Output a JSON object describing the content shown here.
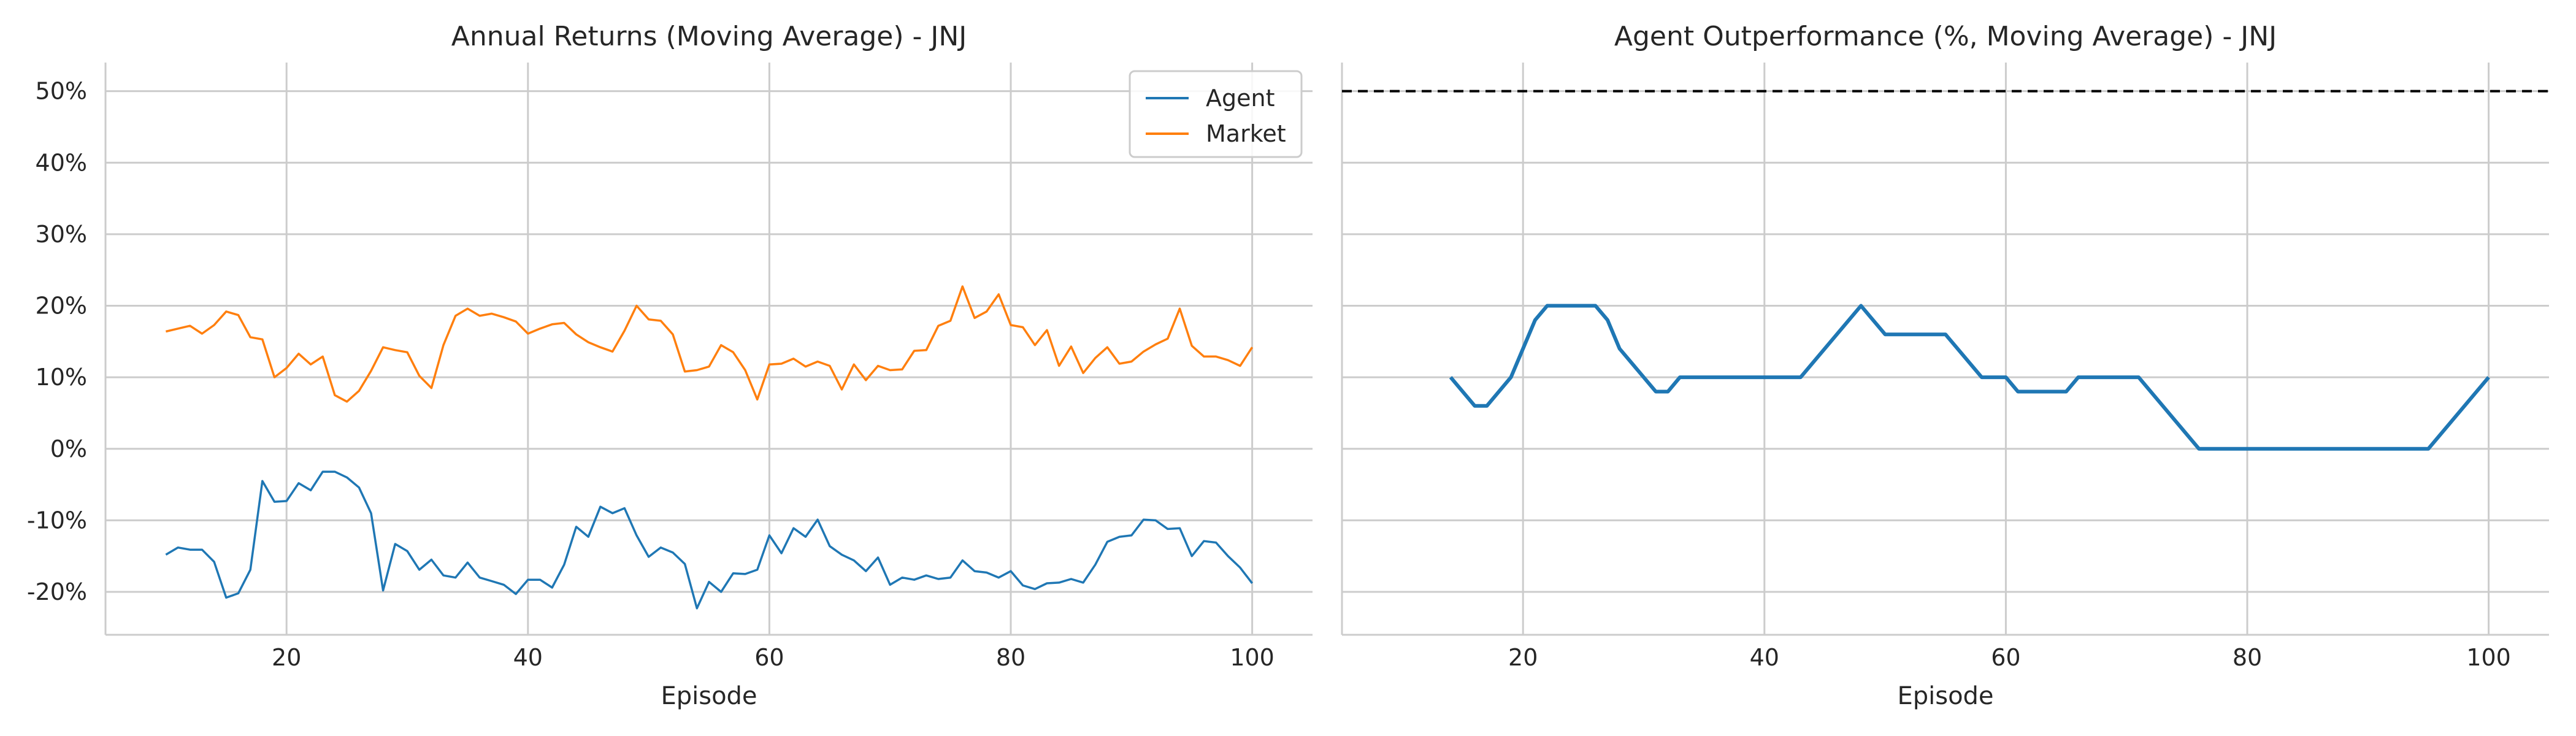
{
  "chart_data": [
    {
      "type": "line",
      "title": "Annual Returns (Moving Average) - JNJ",
      "xlabel": "Episode",
      "ylabel": "",
      "xlim": [
        5,
        105
      ],
      "ylim": [
        -26,
        54
      ],
      "xticks": [
        20,
        40,
        60,
        80,
        100
      ],
      "xtick_labels": [
        "20",
        "40",
        "60",
        "80",
        "100"
      ],
      "yticks": [
        -20,
        -10,
        0,
        10,
        20,
        30,
        40,
        50
      ],
      "ytick_labels": [
        "-20%",
        "-10%",
        "0%",
        "10%",
        "20%",
        "30%",
        "40%",
        "50%"
      ],
      "grid": true,
      "legend": "top-right",
      "x": [
        10,
        11,
        12,
        13,
        14,
        15,
        16,
        17,
        18,
        19,
        20,
        21,
        22,
        23,
        24,
        25,
        26,
        27,
        28,
        29,
        30,
        31,
        32,
        33,
        34,
        35,
        36,
        37,
        38,
        39,
        40,
        41,
        42,
        43,
        44,
        45,
        46,
        47,
        48,
        49,
        50,
        51,
        52,
        53,
        54,
        55,
        56,
        57,
        58,
        59,
        60,
        61,
        62,
        63,
        64,
        65,
        66,
        67,
        68,
        69,
        70,
        71,
        72,
        73,
        74,
        75,
        76,
        77,
        78,
        79,
        80,
        81,
        82,
        83,
        84,
        85,
        86,
        87,
        88,
        89,
        90,
        91,
        92,
        93,
        94,
        95,
        96,
        97,
        98,
        99,
        100
      ],
      "series": [
        {
          "name": "Agent",
          "color": "#1f77b4",
          "values": [
            -14.8,
            -13.8,
            -14.1,
            -14.1,
            -15.8,
            -20.8,
            -20.2,
            -16.9,
            -4.5,
            -7.4,
            -7.3,
            -4.8,
            -5.8,
            -3.2,
            -3.2,
            -4.0,
            -5.4,
            -9.0,
            -19.8,
            -13.3,
            -14.3,
            -16.9,
            -15.5,
            -17.7,
            -18.0,
            -15.9,
            -18.0,
            -18.5,
            -19.0,
            -20.3,
            -18.3,
            -18.3,
            -19.4,
            -16.2,
            -10.9,
            -12.3,
            -8.1,
            -9.0,
            -8.3,
            -12.1,
            -15.1,
            -13.8,
            -14.5,
            -16.1,
            -22.3,
            -18.6,
            -20.0,
            -17.4,
            -17.5,
            -16.9,
            -12.1,
            -14.6,
            -11.1,
            -12.3,
            -9.9,
            -13.6,
            -14.8,
            -15.6,
            -17.1,
            -15.2,
            -19.0,
            -18.0,
            -18.3,
            -17.7,
            -18.2,
            -18.0,
            -15.6,
            -17.1,
            -17.3,
            -18.0,
            -17.1,
            -19.1,
            -19.6,
            -18.8,
            -18.7,
            -18.2,
            -18.7,
            -16.2,
            -13.0,
            -12.3,
            -12.1,
            -9.9,
            -10.0,
            -11.2,
            -11.1,
            -15.0,
            -12.9,
            -13.1,
            -15.0,
            -16.6,
            -18.8
          ]
        },
        {
          "name": "Market",
          "color": "#ff7f0e",
          "values": [
            16.4,
            16.8,
            17.2,
            16.1,
            17.3,
            19.2,
            18.7,
            15.6,
            15.3,
            10.0,
            11.3,
            13.3,
            11.8,
            12.9,
            7.5,
            6.6,
            8.1,
            10.9,
            14.2,
            13.8,
            13.5,
            10.2,
            8.5,
            14.5,
            18.6,
            19.6,
            18.6,
            18.9,
            18.4,
            17.8,
            16.1,
            16.8,
            17.4,
            17.6,
            16.0,
            14.9,
            14.2,
            13.6,
            16.5,
            20.0,
            18.1,
            17.9,
            16.0,
            10.8,
            11.0,
            11.5,
            14.5,
            13.5,
            11.0,
            6.9,
            11.8,
            11.9,
            12.6,
            11.5,
            12.2,
            11.6,
            8.3,
            11.8,
            9.6,
            11.6,
            11.0,
            11.1,
            13.7,
            13.8,
            17.2,
            17.9,
            22.7,
            18.3,
            19.2,
            21.6,
            17.3,
            17.0,
            14.5,
            16.6,
            11.6,
            14.3,
            10.6,
            12.7,
            14.2,
            11.9,
            12.2,
            13.6,
            14.6,
            15.4,
            19.6,
            14.4,
            12.9,
            12.9,
            12.4,
            11.6,
            14.2
          ]
        }
      ]
    },
    {
      "type": "line",
      "title": "Agent Outperformance (%, Moving Average) - JNJ",
      "xlabel": "Episode",
      "ylabel": "",
      "xlim": [
        5,
        105
      ],
      "ylim": [
        -26,
        54
      ],
      "xticks": [
        20,
        40,
        60,
        80,
        100
      ],
      "xtick_labels": [
        "20",
        "40",
        "60",
        "80",
        "100"
      ],
      "yticks": [
        -20,
        -10,
        0,
        10,
        20,
        30,
        40,
        50
      ],
      "grid": true,
      "reference_line": {
        "y": 50,
        "style": "dashed",
        "color": "#000000"
      },
      "x": [
        14,
        16,
        17,
        19,
        21,
        22,
        26,
        27,
        28,
        31,
        32,
        33,
        43,
        48,
        50,
        55,
        58,
        60,
        61,
        65,
        66,
        71,
        76,
        95,
        100
      ],
      "series": [
        {
          "name": "",
          "color": "#1f77b4",
          "values": [
            10,
            6,
            6,
            10,
            18,
            20,
            20,
            18,
            14,
            8,
            8,
            10,
            10,
            20,
            16,
            16,
            10,
            10,
            8,
            8,
            10,
            10,
            0,
            0,
            10
          ]
        }
      ]
    }
  ]
}
